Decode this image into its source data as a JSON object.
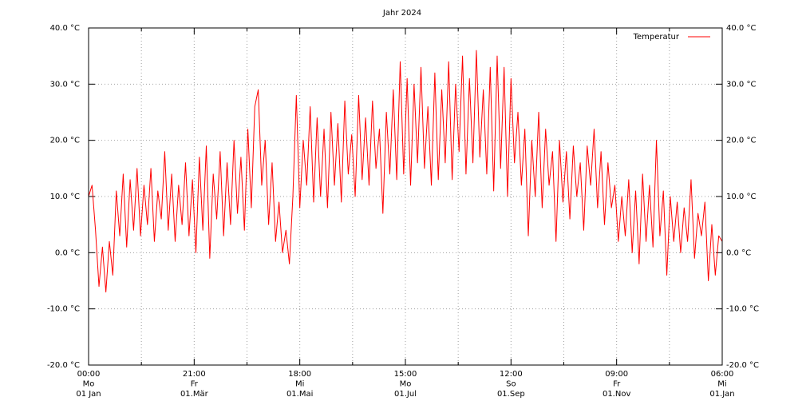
{
  "chart_data": {
    "type": "line",
    "title": "Jahr 2024",
    "x": [
      0,
      2,
      4,
      6,
      8,
      10,
      12,
      14,
      16,
      18,
      20,
      22,
      24,
      26,
      28,
      30,
      32,
      34,
      36,
      38,
      40,
      42,
      44,
      46,
      48,
      50,
      52,
      54,
      56,
      58,
      60,
      62,
      64,
      66,
      68,
      70,
      72,
      74,
      76,
      78,
      80,
      82,
      84,
      86,
      88,
      90,
      92,
      94,
      96,
      98,
      100,
      102,
      104,
      106,
      108,
      110,
      112,
      114,
      116,
      118,
      120,
      122,
      124,
      126,
      128,
      130,
      132,
      134,
      136,
      138,
      140,
      142,
      144,
      146,
      148,
      150,
      152,
      154,
      156,
      158,
      160,
      162,
      164,
      166,
      168,
      170,
      172,
      174,
      176,
      178,
      180,
      182,
      184,
      186,
      188,
      190,
      192,
      194,
      196,
      198,
      200,
      202,
      204,
      206,
      208,
      210,
      212,
      214,
      216,
      218,
      220,
      222,
      224,
      226,
      228,
      230,
      232,
      234,
      236,
      238,
      240,
      242,
      244,
      246,
      248,
      250,
      252,
      254,
      256,
      258,
      260,
      262,
      264,
      266,
      268,
      270,
      272,
      274,
      276,
      278,
      280,
      282,
      284,
      286,
      288,
      290,
      292,
      294,
      296,
      298,
      300,
      302,
      304,
      306,
      308,
      310,
      312,
      314,
      316,
      318,
      320,
      322,
      324,
      326,
      328,
      330,
      332,
      334,
      336,
      338,
      340,
      342,
      344,
      346,
      348,
      350,
      352,
      354,
      356,
      358,
      360,
      362,
      364,
      366
    ],
    "series": [
      {
        "name": "Temperatur",
        "color": "#ff0000",
        "values": [
          10,
          12,
          4,
          -6,
          1,
          -7,
          2,
          -4,
          11,
          3,
          14,
          1,
          13,
          4,
          15,
          3,
          12,
          5,
          15,
          2,
          11,
          6,
          18,
          4,
          14,
          2,
          12,
          5,
          16,
          3,
          13,
          0,
          17,
          4,
          19,
          -1,
          14,
          6,
          18,
          3,
          16,
          5,
          20,
          7,
          17,
          4,
          22,
          8,
          26,
          29,
          12,
          20,
          5,
          16,
          2,
          9,
          0,
          4,
          -2,
          10,
          28,
          8,
          20,
          12,
          26,
          9,
          24,
          10,
          22,
          8,
          25,
          12,
          23,
          9,
          27,
          14,
          21,
          10,
          28,
          13,
          24,
          12,
          27,
          15,
          22,
          7,
          25,
          14,
          29,
          13,
          34,
          14,
          31,
          12,
          30,
          16,
          33,
          15,
          26,
          12,
          32,
          13,
          29,
          16,
          34,
          13,
          30,
          18,
          35,
          14,
          31,
          16,
          36,
          17,
          29,
          14,
          33,
          11,
          35,
          15,
          33,
          10,
          31,
          16,
          25,
          12,
          22,
          3,
          20,
          10,
          25,
          8,
          22,
          12,
          18,
          2,
          20,
          9,
          18,
          6,
          19,
          10,
          16,
          4,
          19,
          12,
          22,
          8,
          18,
          5,
          16,
          8,
          12,
          2,
          10,
          3,
          13,
          0,
          11,
          -2,
          14,
          2,
          12,
          1,
          20,
          3,
          11,
          -4,
          10,
          2,
          9,
          0,
          8,
          2,
          13,
          -1,
          7,
          3,
          9,
          -5,
          5,
          -4,
          3,
          2
        ]
      }
    ],
    "xlim": [
      0,
      366
    ],
    "xticks": [
      {
        "value": 0,
        "label": [
          "00:00",
          "Mo",
          "01 Jan"
        ]
      },
      {
        "value": 61,
        "label": [
          "21:00",
          "Fr",
          "01.Mär"
        ]
      },
      {
        "value": 122,
        "label": [
          "18:00",
          "Mi",
          "01.Mai"
        ]
      },
      {
        "value": 183,
        "label": [
          "15:00",
          "Mo",
          "01.Jul"
        ]
      },
      {
        "value": 244,
        "label": [
          "12:00",
          "So",
          "01.Sep"
        ]
      },
      {
        "value": 305,
        "label": [
          "09:00",
          "Fr",
          "01.Nov"
        ]
      },
      {
        "value": 366,
        "label": [
          "06:00",
          "Mi",
          "01.Jan"
        ]
      }
    ],
    "xminorticks": [
      30.5,
      91.5,
      152.5,
      213.5,
      274.5,
      335.5
    ],
    "ylim": [
      -20,
      40
    ],
    "yticks": [
      {
        "value": -20,
        "label": "-20.0 °C"
      },
      {
        "value": -10,
        "label": "-10.0 °C"
      },
      {
        "value": 0,
        "label": "0.0 °C"
      },
      {
        "value": 10,
        "label": "10.0 °C"
      },
      {
        "value": 20,
        "label": "20.0 °C"
      },
      {
        "value": 30,
        "label": "30.0 °C"
      },
      {
        "value": 40,
        "label": "40.0 °C"
      }
    ],
    "grid": true,
    "legend": "top-right"
  }
}
